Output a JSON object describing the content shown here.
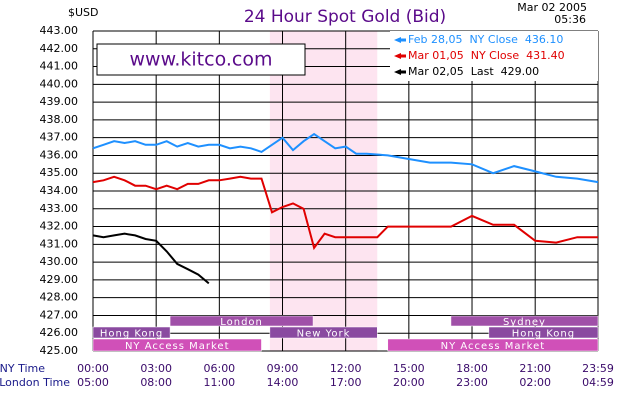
{
  "chart_data": {
    "type": "line",
    "title": "24 Hour Spot Gold (Bid)",
    "y_unit": "$USD",
    "date": "Mar 02 2005",
    "time": "05:36",
    "watermark": "www.kitco.com",
    "x_row_labels": [
      "NY Time",
      "London Time"
    ],
    "xlim": [
      0,
      23.983
    ],
    "xticks": [
      {
        "value": 0,
        "label": "00:00"
      },
      {
        "value": 3,
        "label": "03:00"
      },
      {
        "value": 6,
        "label": "06:00"
      },
      {
        "value": 9,
        "label": "09:00"
      },
      {
        "value": 12,
        "label": "12:00"
      },
      {
        "value": 15,
        "label": "15:00"
      },
      {
        "value": 18,
        "label": "18:00"
      },
      {
        "value": 21,
        "label": "21:00"
      },
      {
        "value": 23.983,
        "label": "23:59"
      }
    ],
    "london_ticks": [
      "05:00",
      "08:00",
      "11:00",
      "14:00",
      "17:00",
      "20:00",
      "23:00",
      "02:00",
      "04:59"
    ],
    "ylim": [
      425,
      443
    ],
    "yticks": [
      {
        "value": 425,
        "label": "425.00"
      },
      {
        "value": 426,
        "label": "426.00"
      },
      {
        "value": 427,
        "label": "427.00"
      },
      {
        "value": 428,
        "label": "428.00"
      },
      {
        "value": 429,
        "label": "429.00"
      },
      {
        "value": 430,
        "label": "430.00"
      },
      {
        "value": 431,
        "label": "431.00"
      },
      {
        "value": 432,
        "label": "432.00"
      },
      {
        "value": 433,
        "label": "433.00"
      },
      {
        "value": 434,
        "label": "434.00"
      },
      {
        "value": 435,
        "label": "435.00"
      },
      {
        "value": 436,
        "label": "436.00"
      },
      {
        "value": 437,
        "label": "437.00"
      },
      {
        "value": 438,
        "label": "438.00"
      },
      {
        "value": 439,
        "label": "439.00"
      },
      {
        "value": 440,
        "label": "440.00"
      },
      {
        "value": 441,
        "label": "441.00"
      },
      {
        "value": 442,
        "label": "442.00"
      },
      {
        "value": 443,
        "label": "443.00"
      }
    ],
    "grid": true,
    "highlight": [
      8.4,
      13.5
    ],
    "sessions": [
      {
        "label": "London",
        "start": 3.66,
        "end": 10.45,
        "row": 0,
        "color": "#a050a8"
      },
      {
        "label": "Sydney",
        "start": 17,
        "end": 23.983,
        "row": 0,
        "color": "#a050a8"
      },
      {
        "label": "Hong Kong",
        "start": 0,
        "end": 3.66,
        "row": 1,
        "color": "#8a4aa0"
      },
      {
        "label": "New York",
        "start": 8.4,
        "end": 13.5,
        "row": 1,
        "color": "#8a4aa0"
      },
      {
        "label": "Hong Kong",
        "start": 18.8,
        "end": 23.983,
        "row": 1,
        "color": "#8a4aa0"
      },
      {
        "label": "NY Access Market",
        "start": 0,
        "end": 8,
        "row": 2,
        "color": "#d050b8"
      },
      {
        "label": "NY Access Market",
        "start": 14,
        "end": 23.983,
        "row": 2,
        "color": "#d050b8"
      }
    ],
    "series": [
      {
        "name": "Feb 28,05  NY Close  436.10",
        "color": "#1e90ff",
        "x": [
          0,
          0.5,
          1,
          1.5,
          2,
          2.5,
          3,
          3.5,
          4,
          4.5,
          5,
          5.5,
          6,
          6.5,
          7,
          7.5,
          8,
          8.5,
          9,
          9.5,
          10,
          10.5,
          11,
          11.5,
          12,
          12.5,
          13,
          14,
          15,
          16,
          17,
          18,
          19,
          20,
          21,
          22,
          23,
          23.983
        ],
        "values": [
          436.4,
          436.6,
          436.8,
          436.7,
          436.8,
          436.6,
          436.6,
          436.8,
          436.5,
          436.7,
          436.5,
          436.6,
          436.6,
          436.4,
          436.5,
          436.4,
          436.2,
          436.6,
          437.0,
          436.3,
          436.8,
          437.2,
          436.8,
          436.4,
          436.5,
          436.1,
          436.1,
          436.0,
          435.8,
          435.6,
          435.6,
          435.5,
          435.0,
          435.4,
          435.1,
          434.8,
          434.7,
          434.5
        ]
      },
      {
        "name": "Mar 01,05  NY Close  431.40",
        "color": "#e00000",
        "x": [
          0,
          0.5,
          1,
          1.5,
          2,
          2.5,
          3,
          3.5,
          4,
          4.5,
          5,
          5.5,
          6,
          6.5,
          7,
          7.5,
          8,
          8.5,
          9,
          9.5,
          10,
          10.5,
          11,
          11.5,
          12,
          13,
          13.5,
          14,
          15,
          16,
          17,
          18,
          19,
          20,
          21,
          22,
          23,
          23.983
        ],
        "values": [
          434.5,
          434.6,
          434.8,
          434.6,
          434.3,
          434.3,
          434.1,
          434.3,
          434.1,
          434.4,
          434.4,
          434.6,
          434.6,
          434.7,
          434.8,
          434.7,
          434.7,
          432.8,
          433.1,
          433.3,
          433.0,
          430.8,
          431.6,
          431.4,
          431.4,
          431.4,
          431.4,
          432.0,
          432.0,
          432.0,
          432.0,
          432.6,
          432.1,
          432.1,
          431.2,
          431.1,
          431.4,
          431.4
        ]
      },
      {
        "name": "Mar 02,05  Last  429.00",
        "color": "#000000",
        "x": [
          0,
          0.5,
          1,
          1.5,
          2,
          2.5,
          3,
          3.5,
          4,
          4.5,
          5,
          5.5
        ],
        "values": [
          431.5,
          431.4,
          431.5,
          431.6,
          431.5,
          431.3,
          431.2,
          430.6,
          429.9,
          429.6,
          429.3,
          428.8
        ]
      }
    ]
  }
}
